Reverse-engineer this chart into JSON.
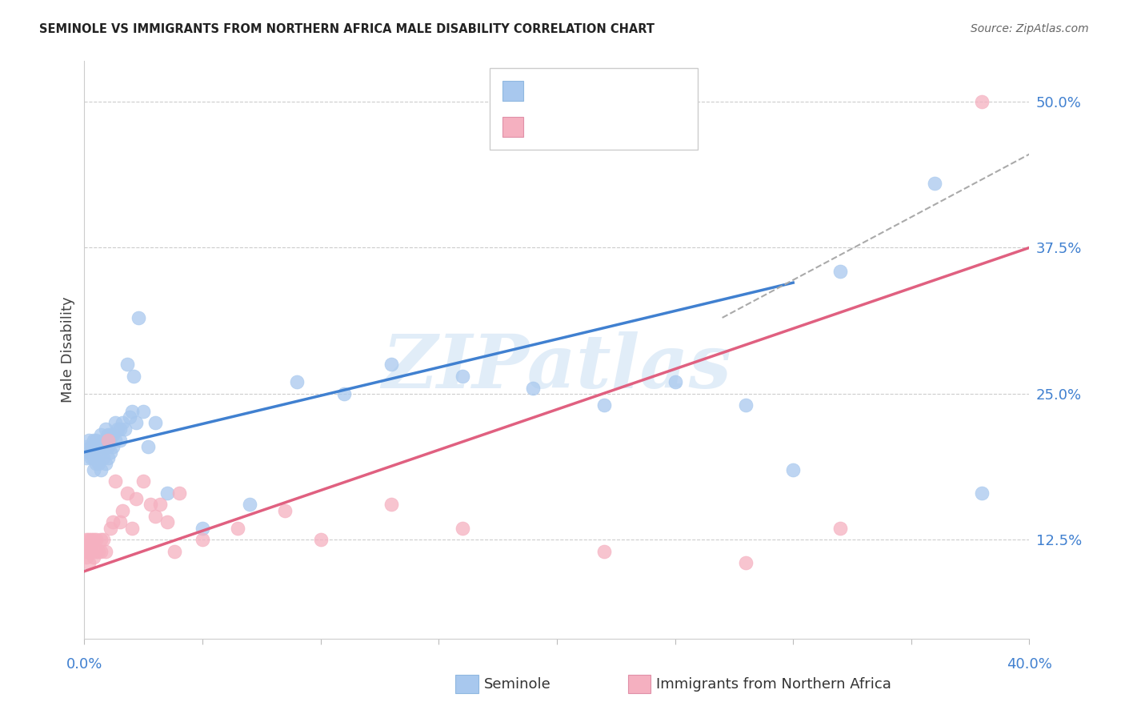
{
  "title": "SEMINOLE VS IMMIGRANTS FROM NORTHERN AFRICA MALE DISABILITY CORRELATION CHART",
  "source": "Source: ZipAtlas.com",
  "ylabel": "Male Disability",
  "right_yticks": [
    0.125,
    0.25,
    0.375,
    0.5
  ],
  "right_yticklabels": [
    "12.5%",
    "25.0%",
    "37.5%",
    "50.0%"
  ],
  "xlim": [
    0.0,
    0.4
  ],
  "ylim": [
    0.04,
    0.535
  ],
  "blue_label": "Seminole",
  "pink_label": "Immigrants from Northern Africa",
  "blue_color": "#A8C8EE",
  "pink_color": "#F5B0C0",
  "blue_line_color": "#4080D0",
  "pink_line_color": "#E06080",
  "legend_text_color": "#4080D0",
  "watermark": "ZIPatlas",
  "blue_scatter_x": [
    0.001,
    0.001,
    0.002,
    0.002,
    0.003,
    0.003,
    0.004,
    0.004,
    0.004,
    0.005,
    0.005,
    0.005,
    0.006,
    0.006,
    0.007,
    0.007,
    0.007,
    0.008,
    0.008,
    0.009,
    0.009,
    0.009,
    0.01,
    0.01,
    0.01,
    0.011,
    0.011,
    0.012,
    0.012,
    0.013,
    0.013,
    0.014,
    0.015,
    0.015,
    0.016,
    0.017,
    0.018,
    0.019,
    0.02,
    0.021,
    0.022,
    0.023,
    0.025,
    0.027,
    0.03,
    0.035,
    0.05,
    0.07,
    0.09,
    0.11,
    0.13,
    0.16,
    0.19,
    0.22,
    0.25,
    0.28,
    0.32,
    0.36,
    0.3,
    0.38
  ],
  "blue_scatter_y": [
    0.195,
    0.205,
    0.2,
    0.21,
    0.195,
    0.205,
    0.185,
    0.195,
    0.21,
    0.19,
    0.2,
    0.21,
    0.19,
    0.205,
    0.185,
    0.2,
    0.215,
    0.195,
    0.21,
    0.19,
    0.205,
    0.22,
    0.195,
    0.205,
    0.215,
    0.2,
    0.215,
    0.205,
    0.215,
    0.21,
    0.225,
    0.22,
    0.21,
    0.22,
    0.225,
    0.22,
    0.275,
    0.23,
    0.235,
    0.265,
    0.225,
    0.315,
    0.235,
    0.205,
    0.225,
    0.165,
    0.135,
    0.155,
    0.26,
    0.25,
    0.275,
    0.265,
    0.255,
    0.24,
    0.26,
    0.24,
    0.355,
    0.43,
    0.185,
    0.165
  ],
  "pink_scatter_x": [
    0.001,
    0.001,
    0.001,
    0.001,
    0.002,
    0.002,
    0.002,
    0.003,
    0.003,
    0.004,
    0.004,
    0.005,
    0.005,
    0.006,
    0.007,
    0.007,
    0.008,
    0.009,
    0.01,
    0.011,
    0.012,
    0.013,
    0.015,
    0.016,
    0.018,
    0.02,
    0.022,
    0.025,
    0.028,
    0.03,
    0.032,
    0.035,
    0.038,
    0.04,
    0.05,
    0.065,
    0.085,
    0.1,
    0.13,
    0.16,
    0.22,
    0.28,
    0.32,
    0.38
  ],
  "pink_scatter_y": [
    0.11,
    0.115,
    0.12,
    0.125,
    0.105,
    0.115,
    0.125,
    0.115,
    0.125,
    0.11,
    0.125,
    0.115,
    0.125,
    0.115,
    0.115,
    0.125,
    0.125,
    0.115,
    0.21,
    0.135,
    0.14,
    0.175,
    0.14,
    0.15,
    0.165,
    0.135,
    0.16,
    0.175,
    0.155,
    0.145,
    0.155,
    0.14,
    0.115,
    0.165,
    0.125,
    0.135,
    0.15,
    0.125,
    0.155,
    0.135,
    0.115,
    0.105,
    0.135,
    0.5
  ],
  "blue_line_x": [
    0.0,
    0.3
  ],
  "blue_line_y": [
    0.2,
    0.345
  ],
  "pink_line_x": [
    0.0,
    0.4
  ],
  "pink_line_y": [
    0.098,
    0.375
  ],
  "dash_line_x": [
    0.27,
    0.4
  ],
  "dash_line_y": [
    0.315,
    0.455
  ],
  "background_color": "#ffffff",
  "grid_color": "#cccccc"
}
